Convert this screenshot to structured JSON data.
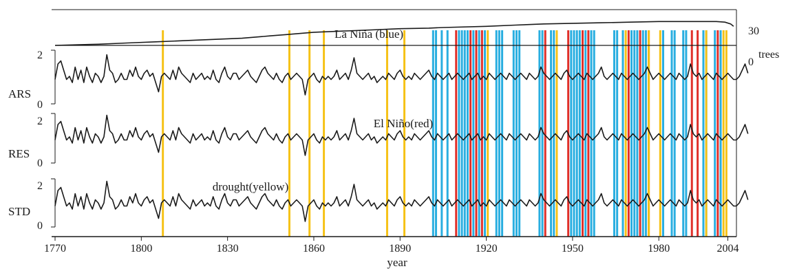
{
  "chart_data": {
    "type": "line",
    "x_range": [
      1770,
      2007
    ],
    "x_ticks": [
      "1770",
      "1800",
      "1830",
      "1860",
      "1890",
      "1920",
      "1950",
      "1980",
      "2004"
    ],
    "xlabel": "year",
    "trees_axis": {
      "label": "trees",
      "ticks": [
        "0",
        "30"
      ],
      "range": [
        0,
        30
      ]
    },
    "panels": [
      {
        "name": "ARS",
        "y_ticks": [
          "2",
          "0"
        ],
        "ylim": [
          0,
          2
        ]
      },
      {
        "name": "RES",
        "y_ticks": [
          "2",
          "0"
        ],
        "ylim": [
          0,
          2
        ]
      },
      {
        "name": "STD",
        "y_ticks": [
          "2",
          "0"
        ],
        "ylim": [
          0,
          2
        ]
      }
    ],
    "annotations": {
      "la_nina": "La Niña (blue)",
      "el_nino": "El Niño(red)",
      "drought": "drought(yellow)"
    },
    "colors": {
      "la_nina": "#29aee0",
      "el_nino": "#e0302a",
      "drought": "#f6c217",
      "line": "#1a1a1a"
    },
    "tree_count": {
      "years": [
        1770,
        1778,
        1785,
        1795,
        1805,
        1815,
        1825,
        1835,
        1845,
        1850,
        1855,
        1860,
        1870,
        1880,
        1890,
        1900,
        1905,
        1920,
        1930,
        1940,
        1950,
        1960,
        1970,
        1980,
        1990,
        2000,
        2003,
        2005,
        2006
      ],
      "values": [
        0,
        0.5,
        1,
        2,
        3,
        4,
        5,
        6,
        8,
        9,
        10,
        11,
        12,
        13,
        14,
        14.5,
        15,
        16,
        17,
        18,
        18.5,
        19,
        19.5,
        20,
        20,
        20,
        19.5,
        18,
        16
      ]
    },
    "drought_years": [
      1807,
      1851,
      1858,
      1863,
      1885,
      1891,
      1920,
      1944,
      1968,
      1976,
      1980,
      1996,
      2002,
      2003
    ],
    "el_nino_years": [
      1909,
      1914,
      1916,
      1918,
      1940,
      1948,
      1953,
      1955,
      1969,
      1973,
      1976,
      1991,
      1993,
      2000
    ],
    "la_nina_years": [
      1901,
      1902,
      1904,
      1906,
      1910,
      1911,
      1912,
      1913,
      1915,
      1917,
      1919,
      1923,
      1924,
      1925,
      1929,
      1930,
      1931,
      1938,
      1939,
      1942,
      1943,
      1949,
      1950,
      1951,
      1952,
      1954,
      1956,
      1957,
      1964,
      1965,
      1967,
      1970,
      1971,
      1972,
      1974,
      1975,
      1981,
      1984,
      1985,
      1988,
      1989,
      1995,
      1996,
      1999,
      2001
    ],
    "ARS": [
      1.0,
      1.5,
      1.6,
      1.3,
      1.0,
      1.1,
      0.9,
      1.4,
      1.0,
      1.3,
      0.9,
      1.4,
      1.1,
      0.9,
      1.2,
      1.1,
      0.9,
      1.1,
      1.8,
      1.3,
      1.2,
      0.9,
      1.0,
      1.2,
      1.0,
      1.0,
      1.3,
      1.1,
      1.4,
      1.1,
      1.0,
      1.2,
      1.3,
      1.1,
      1.2,
      0.9,
      0.6,
      1.1,
      1.2,
      1.1,
      1.0,
      1.3,
      1.0,
      1.4,
      1.2,
      1.1,
      1.0,
      0.9,
      1.2,
      1.0,
      1.1,
      1.2,
      1.0,
      1.1,
      1.0,
      1.3,
      1.0,
      0.9,
      1.2,
      1.4,
      1.1,
      1.0,
      1.2,
      1.2,
      1.0,
      1.1,
      1.2,
      1.3,
      1.1,
      1.0,
      0.9,
      1.1,
      1.3,
      1.4,
      1.2,
      1.1,
      1.0,
      1.2,
      1.0,
      0.9,
      1.1,
      1.2,
      1.0,
      1.1,
      1.2,
      1.1,
      1.0,
      0.5,
      1.0,
      1.1,
      1.2,
      1.0,
      0.9,
      1.1,
      1.0,
      1.1,
      1.0,
      1.1,
      1.3,
      1.0,
      1.1,
      1.2,
      1.0,
      1.3,
      1.7,
      1.2,
      1.1,
      1.0,
      1.1,
      1.2,
      1.0,
      1.1,
      0.9,
      1.0,
      1.1,
      1.0,
      1.2,
      1.1,
      1.0,
      1.2,
      1.3,
      1.1,
      1.0,
      1.1,
      1.0,
      1.2,
      1.1,
      1.0,
      1.1,
      1.2,
      1.3,
      1.1,
      1.0,
      1.2,
      1.1,
      1.0,
      1.1,
      1.2,
      1.0,
      1.1,
      1.2,
      1.1,
      1.0,
      1.1,
      1.2,
      1.0,
      1.1,
      1.2,
      1.0,
      1.1,
      1.0,
      1.2,
      1.1,
      1.0,
      1.1,
      1.2,
      1.1,
      1.0,
      1.2,
      1.1,
      1.0,
      1.1,
      1.2,
      1.1,
      1.0,
      1.2,
      1.1,
      1.0,
      1.1,
      1.4,
      1.2,
      1.1,
      1.0,
      1.1,
      1.2,
      1.1,
      1.0,
      1.2,
      1.3,
      1.1,
      1.0,
      1.1,
      1.2,
      1.1,
      1.0,
      1.2,
      1.1,
      1.0,
      1.1,
      1.2,
      1.4,
      1.1,
      1.0,
      1.1,
      1.2,
      1.1,
      1.0,
      1.2,
      1.1,
      1.0,
      1.1,
      1.2,
      1.1,
      1.0,
      1.1,
      1.2,
      1.4,
      1.2,
      1.0,
      1.1,
      1.2,
      1.1,
      1.0,
      1.1,
      1.2,
      1.1,
      1.0,
      1.2,
      1.1,
      1.0,
      1.1,
      1.5,
      1.2,
      1.1,
      1.2,
      1.0,
      1.1,
      1.2,
      1.1,
      1.0,
      1.2,
      1.1,
      1.0,
      1.1,
      1.2,
      1.1,
      1.0,
      1.0,
      1.1,
      1.3,
      1.5,
      1.2
    ]
  }
}
